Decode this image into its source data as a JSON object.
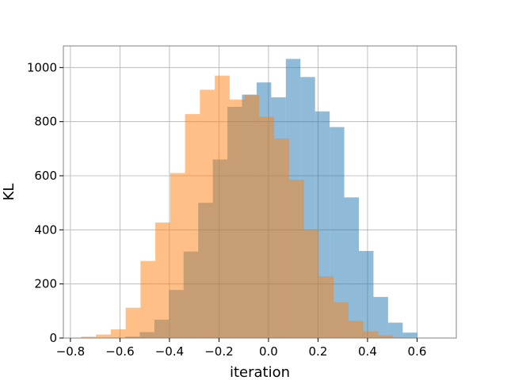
{
  "chart_data": {
    "type": "bar",
    "subtype": "histogram",
    "title": "",
    "xlabel": "iteration",
    "ylabel": "KL",
    "xlim": [
      -0.8285,
      0.7585
    ],
    "ylim": [
      0,
      1080
    ],
    "xticks": [
      -0.8,
      -0.6,
      -0.4,
      -0.2,
      0.0,
      0.2,
      0.4,
      0.6
    ],
    "xtick_labels": [
      "−0.8",
      "−0.6",
      "−0.4",
      "−0.2",
      "0.0",
      "0.2",
      "0.4",
      "0.6"
    ],
    "yticks": [
      0,
      200,
      400,
      600,
      800,
      1000
    ],
    "ytick_labels": [
      "0",
      "200",
      "400",
      "600",
      "800",
      "1000"
    ],
    "grid": true,
    "legend": "none",
    "bar_alpha": 0.5,
    "series": [
      {
        "color": "#1f77b4",
        "bin_edges": [
          -0.579,
          -0.52,
          -0.461,
          -0.402,
          -0.343,
          -0.284,
          -0.225,
          -0.166,
          -0.107,
          -0.048,
          0.011,
          0.07,
          0.129,
          0.188,
          0.247,
          0.306,
          0.365,
          0.424,
          0.483,
          0.542,
          0.601
        ],
        "values": [
          5,
          22,
          68,
          178,
          320,
          500,
          660,
          855,
          900,
          945,
          890,
          1032,
          965,
          838,
          780,
          520,
          322,
          152,
          57,
          20
        ]
      },
      {
        "color": "#ff7f0e",
        "bin_edges": [
          -0.757,
          -0.697,
          -0.637,
          -0.577,
          -0.517,
          -0.457,
          -0.397,
          -0.337,
          -0.277,
          -0.217,
          -0.157,
          -0.097,
          -0.037,
          0.023,
          0.083,
          0.143,
          0.203,
          0.263,
          0.323,
          0.383,
          0.443,
          0.503,
          0.563
        ],
        "values": [
          5,
          13,
          32,
          112,
          285,
          427,
          610,
          828,
          918,
          970,
          882,
          898,
          818,
          738,
          585,
          400,
          228,
          132,
          63,
          25,
          10,
          2
        ]
      }
    ]
  }
}
